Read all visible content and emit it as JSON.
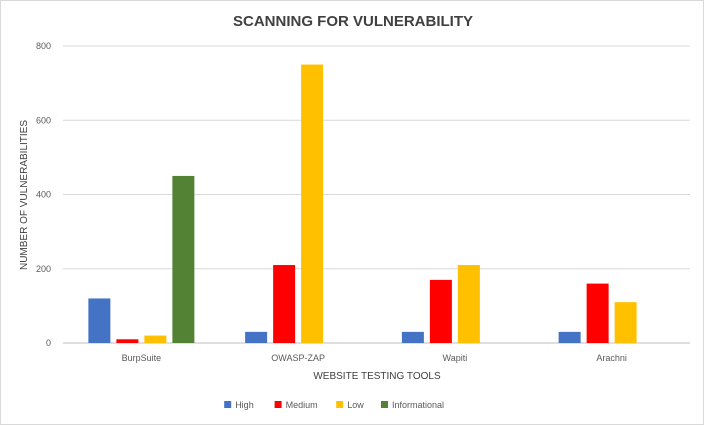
{
  "chart_data": {
    "type": "bar",
    "title": "SCANNING FOR VULNERABILITY",
    "xlabel": "WEBSITE TESTING TOOLS",
    "ylabel": "NUMBER OF VULNERABILITIES",
    "categories": [
      "BurpSuite",
      "OWASP-ZAP",
      "Wapiti",
      "Arachni"
    ],
    "series": [
      {
        "name": "High",
        "color": "#4472c4",
        "values": [
          120,
          30,
          30,
          30
        ]
      },
      {
        "name": "Medium",
        "color": "#ff0000",
        "values": [
          10,
          210,
          170,
          160
        ]
      },
      {
        "name": "Low",
        "color": "#ffc000",
        "values": [
          20,
          750,
          210,
          110
        ]
      },
      {
        "name": "Informational",
        "color": "#548235",
        "values": [
          450,
          0,
          0,
          0
        ]
      }
    ],
    "ylim": [
      0,
      800
    ],
    "yticks": [
      0,
      200,
      400,
      600,
      800
    ],
    "grid": true,
    "legend": "bottom"
  }
}
